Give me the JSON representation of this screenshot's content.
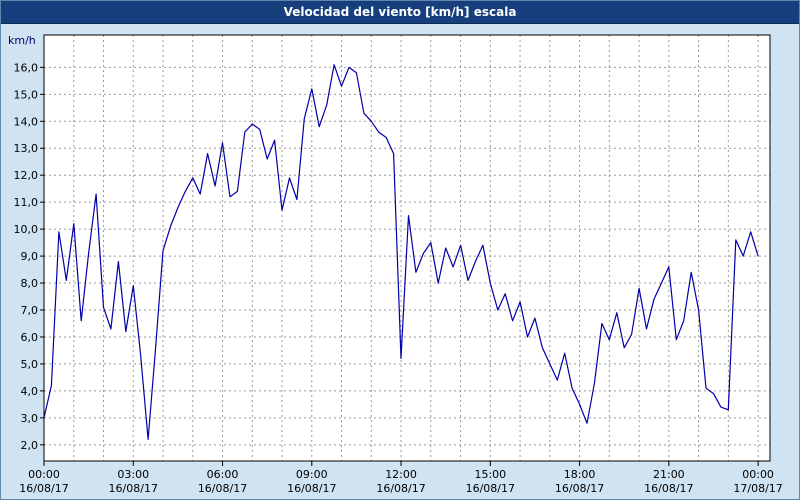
{
  "window": {
    "title": "Velocidad del viento [km/h] escala"
  },
  "colors": {
    "titlebar": "#173f7d",
    "window_background": "#cfe3f2",
    "plot_background": "#ffffff",
    "line": "#0000a8",
    "grid": "#9a9a9a",
    "frame": "#000000",
    "label_text": "#000000",
    "unit_label_text": "#000066"
  },
  "chart_data": {
    "type": "line",
    "title": "Velocidad del viento [km/h] escala",
    "ylabel": "km/h",
    "xlabel": "",
    "series_name": "Velocidad del viento",
    "x": {
      "start_hour": 0,
      "step_hours": 0.25,
      "count": 97
    },
    "values": [
      3.0,
      4.2,
      9.9,
      8.1,
      10.2,
      6.6,
      9.1,
      11.3,
      7.1,
      6.3,
      8.8,
      6.2,
      7.9,
      5.3,
      2.2,
      5.6,
      9.2,
      10.1,
      10.8,
      11.4,
      11.9,
      11.3,
      12.8,
      11.6,
      13.2,
      11.2,
      11.4,
      13.6,
      13.9,
      13.7,
      12.6,
      13.3,
      10.7,
      11.9,
      11.1,
      14.1,
      15.2,
      13.8,
      14.6,
      16.1,
      15.3,
      16.0,
      15.8,
      14.3,
      14.0,
      13.6,
      13.4,
      12.8,
      5.2,
      10.5,
      8.4,
      9.1,
      9.5,
      8.0,
      9.3,
      8.6,
      9.4,
      8.1,
      8.8,
      9.4,
      8.0,
      7.0,
      7.6,
      6.6,
      7.3,
      6.0,
      6.7,
      5.6,
      5.0,
      4.4,
      5.4,
      4.1,
      3.5,
      2.8,
      4.3,
      6.5,
      5.9,
      6.9,
      5.6,
      6.1,
      7.8,
      6.3,
      7.4,
      8.0,
      8.6,
      5.9,
      6.6,
      8.4,
      7.0,
      4.1,
      3.9,
      3.4,
      3.3,
      9.6,
      9.0,
      9.9,
      9.0
    ],
    "ylim": [
      1.4,
      17.2
    ],
    "xlim": [
      0,
      24.4
    ],
    "grid": "dashed, 1 km/h horizontal step, 1 hour vertical step",
    "legend": "none",
    "y_ticks": [
      {
        "value": 2,
        "label": "2,0"
      },
      {
        "value": 3,
        "label": "3,0"
      },
      {
        "value": 4,
        "label": "4,0"
      },
      {
        "value": 5,
        "label": "5,0"
      },
      {
        "value": 6,
        "label": "6,0"
      },
      {
        "value": 7,
        "label": "7,0"
      },
      {
        "value": 8,
        "label": "8,0"
      },
      {
        "value": 9,
        "label": "9,0"
      },
      {
        "value": 10,
        "label": "10,0"
      },
      {
        "value": 11,
        "label": "11,0"
      },
      {
        "value": 12,
        "label": "12,0"
      },
      {
        "value": 13,
        "label": "13,0"
      },
      {
        "value": 14,
        "label": "14,0"
      },
      {
        "value": 15,
        "label": "15,0"
      },
      {
        "value": 16,
        "label": "16,0"
      }
    ],
    "x_ticks": [
      {
        "value": 0,
        "time": "00:00",
        "date": "16/08/17"
      },
      {
        "value": 3,
        "time": "03:00",
        "date": "16/08/17"
      },
      {
        "value": 6,
        "time": "06:00",
        "date": "16/08/17"
      },
      {
        "value": 9,
        "time": "09:00",
        "date": "16/08/17"
      },
      {
        "value": 12,
        "time": "12:00",
        "date": "16/08/17"
      },
      {
        "value": 15,
        "time": "15:00",
        "date": "16/08/17"
      },
      {
        "value": 18,
        "time": "18:00",
        "date": "16/08/17"
      },
      {
        "value": 21,
        "time": "21:00",
        "date": "16/08/17"
      },
      {
        "value": 24,
        "time": "00:00",
        "date": "17/08/17"
      }
    ]
  }
}
